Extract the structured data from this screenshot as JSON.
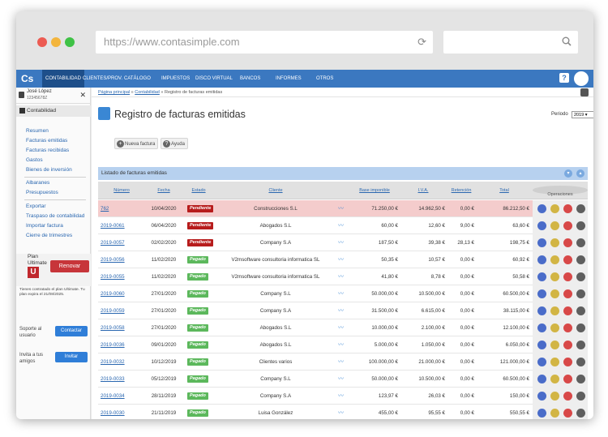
{
  "browser": {
    "url": "https://www.contasimple.com"
  },
  "nav": {
    "logo": "Cs",
    "items": [
      "CONTABILIDAD",
      "CLIENTES/PROV.",
      "CATÁLOGO",
      "IMPUESTOS",
      "DISCO VIRTUAL",
      "BANCOS",
      "INFORMES",
      "OTROS"
    ],
    "help": "?"
  },
  "user": {
    "name": "José López",
    "id": "12345678Z"
  },
  "sidebar": {
    "section": "Contabilidad",
    "group1": [
      "Resumen",
      "Facturas emitidas",
      "Facturas recibidas",
      "Gastos",
      "Bienes de inversión"
    ],
    "group2": [
      "Albaranes",
      "Presupuestos"
    ],
    "group3": [
      "Exportar",
      "Traspaso de contabilidad",
      "Importar factura",
      "Cierre de trimestres"
    ],
    "plan_label": "Plan Ultimate",
    "plan_letter": "U",
    "renew": "Renovar",
    "plan_note": "Tienes contratado el plan Ultimate. Tu plan expira el 21/08/2025.",
    "support_label": "Soporte al usuario",
    "support_btn": "Contactar",
    "invite_label": "Invita a tus amigos",
    "invite_btn": "Invitar"
  },
  "breadcrumb": {
    "home": "Página principal",
    "section": "Contabilidad",
    "current": "Registro de facturas emitidas"
  },
  "page": {
    "title": "Registro de facturas emitidas",
    "period_label": "Periodo",
    "period_value": "2019",
    "btn_new": "Nueva factura",
    "btn_help": "Ayuda",
    "panel_title": "Listado de facturas emitidas"
  },
  "columns": [
    "Número",
    "Fecha",
    "Estado",
    "Cliente",
    "Base imponible",
    "I.V.A.",
    "Retención",
    "Total",
    "Operaciones"
  ],
  "rows": [
    {
      "num": "762",
      "date": "10/04/2020",
      "status": "Pendiente",
      "client": "Construcciones S.L",
      "base": "71.250,00 €",
      "iva": "14.962,50 €",
      "ret": "0,00 €",
      "total": "86.212,50 €",
      "hl": true
    },
    {
      "num": "2019-0061",
      "date": "06/04/2020",
      "status": "Pendiente",
      "client": "Abogados S.L",
      "base": "60,00 €",
      "iva": "12,60 €",
      "ret": "9,00 €",
      "total": "63,60 €"
    },
    {
      "num": "2019-0057",
      "date": "02/02/2020",
      "status": "Pendiente",
      "client": "Company S.A",
      "base": "187,50 €",
      "iva": "39,38 €",
      "ret": "28,13 €",
      "total": "198,75 €"
    },
    {
      "num": "2019-0056",
      "date": "11/02/2020",
      "status": "Pagado",
      "client": "V2msoftware consultoria informatica SL",
      "base": "50,35 €",
      "iva": "10,57 €",
      "ret": "0,00 €",
      "total": "60,92 €"
    },
    {
      "num": "2019-0055",
      "date": "11/02/2020",
      "status": "Pagado",
      "client": "V2msoftware consultoria informatica SL",
      "base": "41,80 €",
      "iva": "8,78 €",
      "ret": "0,00 €",
      "total": "50,58 €"
    },
    {
      "num": "2019-0060",
      "date": "27/01/2020",
      "status": "Pagado",
      "client": "Company S.L",
      "base": "50.000,00 €",
      "iva": "10.500,00 €",
      "ret": "0,00 €",
      "total": "60.500,00 €"
    },
    {
      "num": "2019-0059",
      "date": "27/01/2020",
      "status": "Pagado",
      "client": "Company S.A",
      "base": "31.500,00 €",
      "iva": "6.615,00 €",
      "ret": "0,00 €",
      "total": "38.115,00 €"
    },
    {
      "num": "2019-0058",
      "date": "27/01/2020",
      "status": "Pagado",
      "client": "Abogados S.L",
      "base": "10.000,00 €",
      "iva": "2.100,00 €",
      "ret": "0,00 €",
      "total": "12.100,00 €"
    },
    {
      "num": "2019-0036",
      "date": "09/01/2020",
      "status": "Pagado",
      "client": "Abogados S.L",
      "base": "5.000,00 €",
      "iva": "1.050,00 €",
      "ret": "0,00 €",
      "total": "6.050,00 €"
    },
    {
      "num": "2019-0032",
      "date": "10/12/2019",
      "status": "Pagado",
      "client": "Clientes varios",
      "base": "100.000,00 €",
      "iva": "21.000,00 €",
      "ret": "0,00 €",
      "total": "121.000,00 €"
    },
    {
      "num": "2019-0033",
      "date": "05/12/2019",
      "status": "Pagado",
      "client": "Company S.L",
      "base": "50.000,00 €",
      "iva": "10.500,00 €",
      "ret": "0,00 €",
      "total": "60.500,00 €"
    },
    {
      "num": "2019-0034",
      "date": "28/11/2019",
      "status": "Pagado",
      "client": "Company S.A",
      "base": "123,97 €",
      "iva": "26,03 €",
      "ret": "0,00 €",
      "total": "150,00 €"
    },
    {
      "num": "2019-0030",
      "date": "21/11/2019",
      "status": "Pagado",
      "client": "Luisa González",
      "base": "455,00 €",
      "iva": "95,55 €",
      "ret": "0,00 €",
      "total": "550,55 €"
    }
  ],
  "colors": {
    "nav": "#3b78c0",
    "pending": "#b71c1c",
    "paid": "#5cb85c",
    "highlight": "#f4cccc",
    "renew": "#c7353a"
  }
}
